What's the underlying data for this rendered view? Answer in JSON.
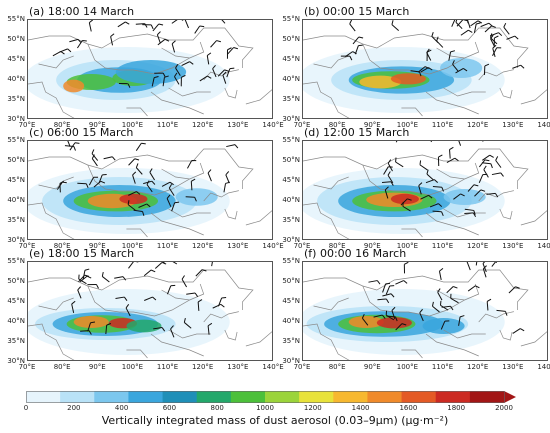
{
  "panels": [
    {
      "label": "(a) 18:00 14 March"
    },
    {
      "label": "(b) 00:00 15 March"
    },
    {
      "label": "(c) 06:00 15 March"
    },
    {
      "label": "(d) 12:00 15 March"
    },
    {
      "label": "(e) 18:00 15 March"
    },
    {
      "label": "(f) 00:00 16 March"
    }
  ],
  "lat_ticks": [
    "55°N",
    "50°N",
    "45°N",
    "40°N",
    "35°N",
    "30°N"
  ],
  "lon_ticks": [
    "70°E",
    "80°E",
    "90°E",
    "100°E",
    "110°E",
    "120°E",
    "130°E",
    "140°E"
  ],
  "colorbar": {
    "ticks": [
      "0",
      "200",
      "400",
      "600",
      "800",
      "1000",
      "1200",
      "1400",
      "1600",
      "1800",
      "2000"
    ],
    "label": "Vertically integrated mass of dust aerosol (0.03–9μm) (μg·m⁻²)",
    "colors": [
      "#e6f4fc",
      "#b9e2f7",
      "#7cc7ee",
      "#3aa6dd",
      "#1f8fb8",
      "#23a86b",
      "#4cc03a",
      "#9bd43a",
      "#e8e23a",
      "#f7b82f",
      "#f08a2a",
      "#e45a25",
      "#cc2a22",
      "#a21616"
    ]
  },
  "map_colors": {
    "border": "#8a8a8a",
    "wind": "#111111",
    "frame": "#555555"
  }
}
